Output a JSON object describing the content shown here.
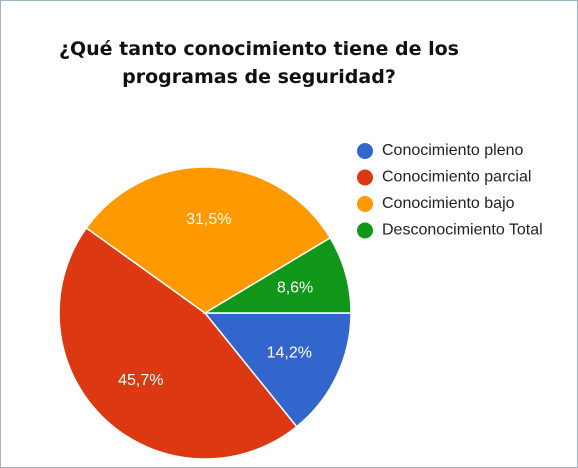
{
  "chart_data": {
    "type": "pie",
    "title": "¿Qué tanto conocimiento tiene de los programas de seguridad?",
    "categories": [
      "Conocimiento pleno",
      "Conocimiento parcial",
      "Conocimiento bajo",
      "Desconocimiento Total"
    ],
    "values": [
      14.2,
      45.7,
      31.5,
      8.6
    ],
    "value_labels": [
      "14,2%",
      "45,7%",
      "31,5%",
      "8,6%"
    ],
    "colors": [
      "#3366cc",
      "#dc3912",
      "#ff9900",
      "#109618"
    ],
    "legend": "right"
  }
}
